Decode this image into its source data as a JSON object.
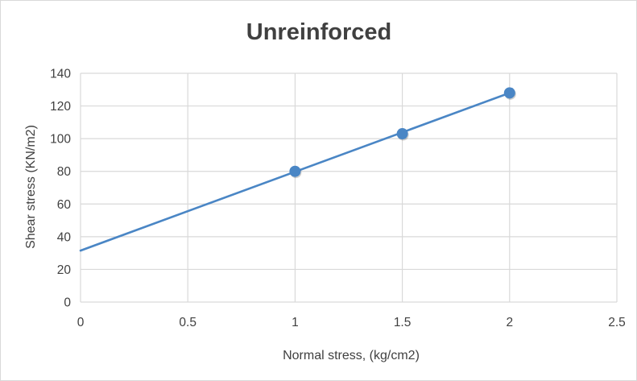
{
  "chart_data": {
    "type": "scatter",
    "title": "Unreinforced",
    "xlabel": "Normal stress, (kg/cm2)",
    "ylabel": "Shear stress (KN/m2)",
    "xlim": [
      0,
      2.5
    ],
    "ylim": [
      0,
      140
    ],
    "xticks": [
      0,
      0.5,
      1,
      1.5,
      2,
      2.5
    ],
    "xtick_labels": [
      "0",
      "0.5",
      "1",
      "1.5",
      "2",
      "2.5"
    ],
    "yticks": [
      0,
      20,
      40,
      60,
      80,
      100,
      120,
      140
    ],
    "ytick_labels": [
      "0",
      "20",
      "40",
      "60",
      "80",
      "100",
      "120",
      "140"
    ],
    "grid": true,
    "legend": "none",
    "series": [
      {
        "x": [
          1,
          1.5,
          2
        ],
        "y": [
          80,
          103,
          128
        ],
        "color": "#4a86c5",
        "marker": "circle"
      }
    ],
    "trendline": {
      "type": "linear",
      "x": [
        0,
        2
      ],
      "y": [
        31.5,
        128
      ],
      "color": "#4a86c5"
    }
  }
}
